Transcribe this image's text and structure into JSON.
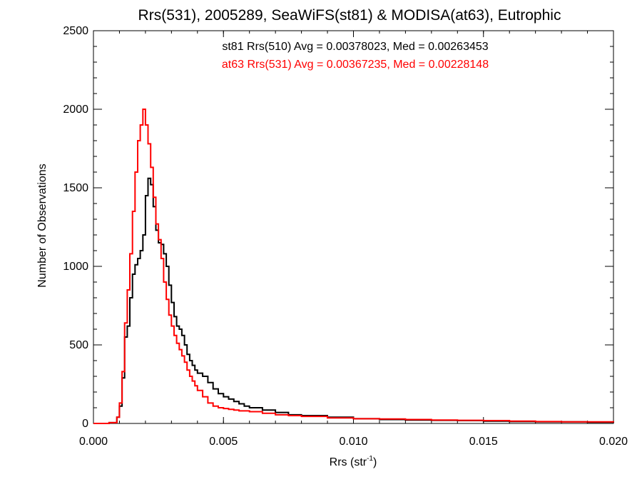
{
  "chart_data": {
    "type": "line",
    "title": "Rrs(531), 2005289, SeaWiFS(st81) & MODISA(at63), Eutrophic",
    "xlabel_main": "Rrs (str",
    "xlabel_sup": "-1",
    "xlabel_close": ")",
    "ylabel": "Number of Observations",
    "xlim": [
      0.0,
      0.02
    ],
    "ylim": [
      0,
      2500
    ],
    "x_ticks": [
      0.0,
      0.005,
      0.01,
      0.015,
      0.02
    ],
    "x_tick_labels": [
      "0.000",
      "0.005",
      "0.010",
      "0.015",
      "0.020"
    ],
    "y_ticks": [
      0,
      500,
      1000,
      1500,
      2000,
      2500
    ],
    "y_tick_labels": [
      "0",
      "500",
      "1000",
      "1500",
      "2000",
      "2500"
    ],
    "annotations": [
      {
        "text": "st81 Rrs(510) Avg = 0.00378023, Med = 0.00263453",
        "color": "#000000"
      },
      {
        "text": "at63 Rrs(531) Avg = 0.00367235, Med = 0.00228148",
        "color": "#ff0000"
      }
    ],
    "series": [
      {
        "color": "#000000",
        "x": [
          0.0,
          0.0006,
          0.0009,
          0.001,
          0.0011,
          0.0012,
          0.0013,
          0.0014,
          0.0015,
          0.0016,
          0.0017,
          0.0018,
          0.0019,
          0.002,
          0.0021,
          0.0022,
          0.0023,
          0.0024,
          0.0025,
          0.0026,
          0.0027,
          0.0028,
          0.0029,
          0.003,
          0.0031,
          0.0032,
          0.0033,
          0.0034,
          0.0035,
          0.0036,
          0.0037,
          0.0038,
          0.0039,
          0.004,
          0.0042,
          0.0044,
          0.0046,
          0.0048,
          0.005,
          0.0052,
          0.0054,
          0.0056,
          0.0058,
          0.006,
          0.0065,
          0.007,
          0.0075,
          0.008,
          0.009,
          0.01,
          0.011,
          0.012,
          0.013,
          0.014,
          0.015,
          0.016,
          0.017,
          0.018,
          0.019,
          0.02
        ],
        "y": [
          0,
          5,
          40,
          110,
          290,
          550,
          620,
          800,
          950,
          1010,
          1050,
          1100,
          1200,
          1450,
          1560,
          1520,
          1380,
          1230,
          1150,
          1140,
          1080,
          1000,
          880,
          770,
          680,
          620,
          600,
          560,
          500,
          440,
          400,
          370,
          340,
          320,
          300,
          260,
          220,
          190,
          170,
          155,
          140,
          125,
          110,
          100,
          85,
          70,
          55,
          50,
          40,
          30,
          25,
          22,
          20,
          18,
          15,
          12,
          10,
          10,
          8,
          5
        ]
      },
      {
        "color": "#ff0000",
        "x": [
          0.0,
          0.0006,
          0.0009,
          0.001,
          0.0011,
          0.0012,
          0.0013,
          0.0014,
          0.0015,
          0.0016,
          0.0017,
          0.0018,
          0.0019,
          0.002,
          0.0021,
          0.0022,
          0.0023,
          0.0024,
          0.0025,
          0.0026,
          0.0027,
          0.0028,
          0.0029,
          0.003,
          0.0031,
          0.0032,
          0.0033,
          0.0034,
          0.0035,
          0.0036,
          0.0037,
          0.0038,
          0.0039,
          0.004,
          0.0042,
          0.0044,
          0.0046,
          0.0048,
          0.005,
          0.0052,
          0.0054,
          0.0056,
          0.0058,
          0.006,
          0.0065,
          0.007,
          0.0075,
          0.008,
          0.009,
          0.01,
          0.011,
          0.012,
          0.013,
          0.014,
          0.015,
          0.016,
          0.017,
          0.018,
          0.019,
          0.02
        ],
        "y": [
          0,
          5,
          40,
          130,
          330,
          640,
          850,
          1080,
          1350,
          1600,
          1800,
          1900,
          2000,
          1900,
          1780,
          1630,
          1440,
          1270,
          1170,
          1050,
          900,
          790,
          690,
          620,
          560,
          510,
          470,
          430,
          390,
          340,
          300,
          270,
          240,
          210,
          170,
          130,
          110,
          100,
          95,
          90,
          85,
          80,
          80,
          75,
          65,
          55,
          50,
          45,
          35,
          30,
          28,
          25,
          22,
          20,
          18,
          15,
          12,
          10,
          10,
          8
        ]
      }
    ]
  }
}
